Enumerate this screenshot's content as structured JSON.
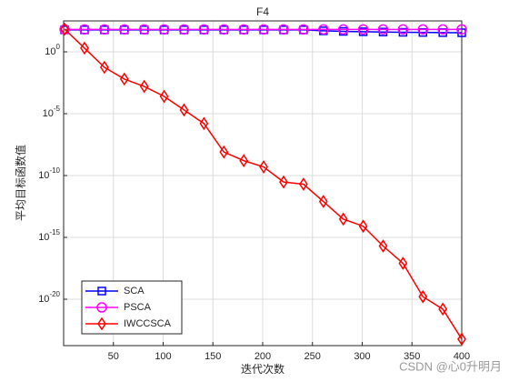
{
  "chart_data": {
    "type": "line",
    "title": "F4",
    "xlabel": "迭代次数",
    "ylabel": "平均目标函数值",
    "x": [
      1,
      21,
      41,
      61,
      81,
      101,
      121,
      141,
      161,
      181,
      201,
      221,
      241,
      261,
      281,
      301,
      321,
      341,
      361,
      381,
      400
    ],
    "series": [
      {
        "name": "SCA",
        "color": "#0000ff",
        "marker": "square",
        "values": [
          60,
          60,
          60,
          60,
          60,
          60,
          60,
          60,
          60,
          60,
          60,
          60,
          60,
          50,
          45,
          42,
          40,
          38,
          37,
          36,
          35
        ]
      },
      {
        "name": "PSCA",
        "color": "#ff00ff",
        "marker": "circle",
        "values": [
          65,
          65,
          65,
          65,
          65,
          65,
          65,
          65,
          65,
          65,
          65,
          65,
          65,
          65,
          65,
          65,
          65,
          65,
          65,
          65,
          65
        ]
      },
      {
        "name": "IWCCSCA",
        "color": "#ff0000",
        "marker": "diamond",
        "values": [
          69,
          2,
          0.056,
          0.0063,
          0.0016,
          0.00025,
          2e-05,
          1.6e-06,
          8e-09,
          1.6e-09,
          5e-10,
          3e-11,
          2e-11,
          8e-13,
          3e-14,
          8e-15,
          2e-16,
          8e-18,
          1.6e-20,
          1.6e-21,
          6e-24
        ]
      }
    ],
    "xlim": [
      0,
      400
    ],
    "xticks": [
      50,
      100,
      150,
      200,
      250,
      300,
      350,
      400
    ],
    "ylim": [
      1.78e-24,
      316
    ],
    "ylog": true,
    "yticks": [
      {
        "value": 1e-20,
        "label": "10^-20"
      },
      {
        "value": 1e-15,
        "label": "10^-15"
      },
      {
        "value": 1e-10,
        "label": "10^-10"
      },
      {
        "value": 1e-05,
        "label": "10^-5"
      },
      {
        "value": 1,
        "label": "10^0"
      }
    ],
    "grid": true,
    "legend": "lower left"
  },
  "watermark": "CSDN @心0升明月"
}
